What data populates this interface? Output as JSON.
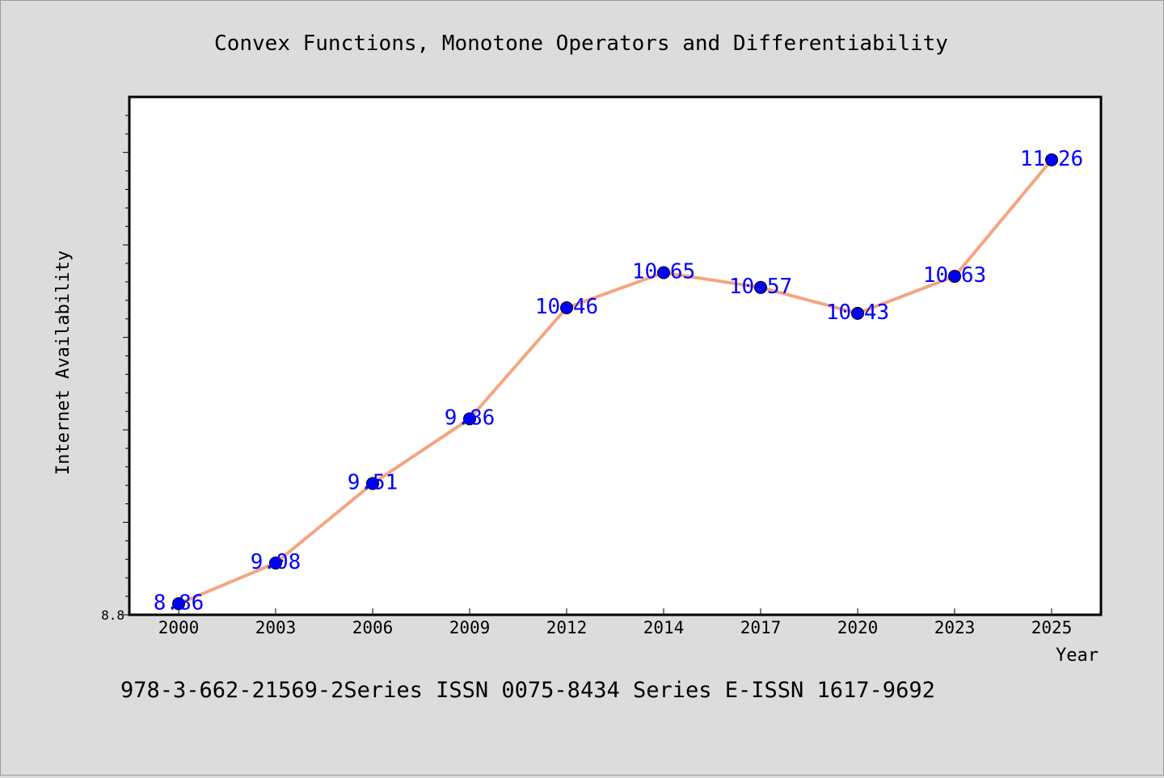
{
  "chart_data": {
    "type": "line",
    "title": "Convex Functions, Monotone Operators and Differentiability",
    "xlabel": "Year",
    "ylabel": "Internet Availability",
    "categories": [
      "2000",
      "2003",
      "2006",
      "2009",
      "2012",
      "2014",
      "2017",
      "2020",
      "2023",
      "2025"
    ],
    "values": [
      8.86,
      9.08,
      9.51,
      9.86,
      10.46,
      10.65,
      10.57,
      10.43,
      10.63,
      11.26
    ],
    "data_labels": [
      "8.86",
      "9.08",
      "9.51",
      "9.86",
      "10.46",
      "10.65",
      "10.57",
      "10.43",
      "10.63",
      "11.26"
    ],
    "ylim": [
      8.8,
      11.6
    ],
    "y_tick_labels": [
      "8.8"
    ],
    "grid": false,
    "line_color": "#f4a582",
    "marker_color": "#0000ff",
    "label_color": "#0000ff",
    "footnote": "978-3-662-21569-2Series ISSN 0075-8434 Series E-ISSN 1617-9692"
  }
}
